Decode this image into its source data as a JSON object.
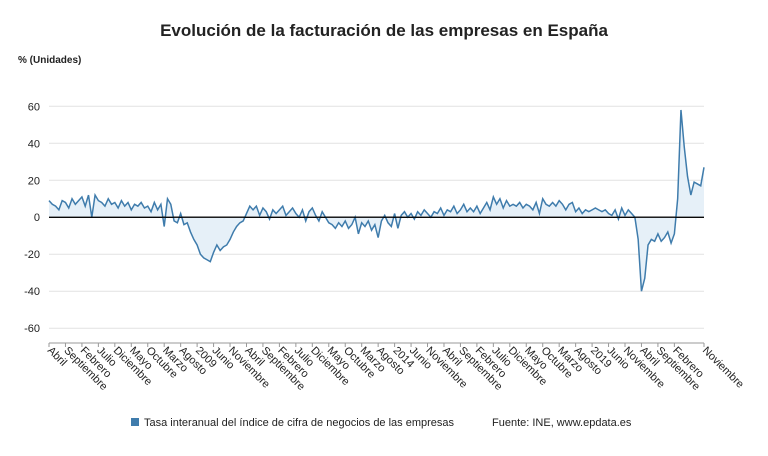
{
  "chart_data": {
    "type": "line",
    "title": "Evolución de la facturación de las empresas en España",
    "y_label": "% (Unidades)",
    "source": "Fuente: INE, www.epdata.es",
    "categories": [
      "Abril",
      null,
      null,
      null,
      null,
      "Septiembre",
      null,
      null,
      null,
      null,
      "Febrero",
      null,
      null,
      null,
      null,
      "Julio",
      null,
      null,
      null,
      null,
      "Diciembre",
      null,
      null,
      null,
      null,
      "Mayo",
      null,
      null,
      null,
      null,
      "Octubre",
      null,
      null,
      null,
      null,
      "Marzo",
      null,
      null,
      null,
      null,
      "Agosto",
      null,
      null,
      null,
      null,
      "2009",
      null,
      null,
      null,
      null,
      "Junio",
      null,
      null,
      null,
      null,
      "Noviembre",
      null,
      null,
      null,
      null,
      "Abril",
      null,
      null,
      null,
      null,
      "Septiembre",
      null,
      null,
      null,
      null,
      "Febrero",
      null,
      null,
      null,
      null,
      "Julio",
      null,
      null,
      null,
      null,
      "Diciembre",
      null,
      null,
      null,
      null,
      "Mayo",
      null,
      null,
      null,
      null,
      "Octubre",
      null,
      null,
      null,
      null,
      "Marzo",
      null,
      null,
      null,
      null,
      "Agosto",
      null,
      null,
      null,
      null,
      "2014",
      null,
      null,
      null,
      null,
      "Junio",
      null,
      null,
      null,
      null,
      "Noviembre",
      null,
      null,
      null,
      null,
      "Abril",
      null,
      null,
      null,
      null,
      "Septiembre",
      null,
      null,
      null,
      null,
      "Febrero",
      null,
      null,
      null,
      null,
      "Julio",
      null,
      null,
      null,
      null,
      "Diciembre",
      null,
      null,
      null,
      null,
      "Mayo",
      null,
      null,
      null,
      null,
      "Octubre",
      null,
      null,
      null,
      null,
      "Marzo",
      null,
      null,
      null,
      null,
      "Agosto",
      null,
      null,
      null,
      null,
      "2019",
      null,
      null,
      null,
      null,
      "Junio",
      null,
      null,
      null,
      null,
      "Noviembre",
      null,
      null,
      null,
      null,
      "Abril",
      null,
      null,
      null,
      null,
      "Septiembre",
      null,
      null,
      null,
      null,
      "Febrero",
      null,
      null,
      null,
      null,
      null,
      null,
      null,
      null,
      "Noviembre"
    ],
    "series": [
      {
        "name": "Tasa interanual del índice de cifra de negocios de las empresas",
        "color": "#3f7cac",
        "values": [
          9,
          7,
          6,
          4,
          9,
          8,
          5,
          10,
          7,
          9,
          11,
          6,
          12,
          0,
          12,
          9,
          8,
          6,
          10,
          7,
          8,
          5,
          9,
          6,
          8,
          4,
          7,
          6,
          8,
          5,
          6,
          3,
          8,
          4,
          7,
          -5,
          10,
          7,
          -2,
          -3,
          2,
          -4,
          -3,
          -8,
          -12,
          -15,
          -20,
          -22,
          -23,
          -24,
          -19,
          -15,
          -18,
          -16,
          -15,
          -12,
          -8,
          -5,
          -3,
          -2,
          2,
          6,
          4,
          6,
          1,
          5,
          3,
          -1,
          4,
          2,
          4,
          6,
          1,
          3,
          5,
          2,
          0,
          4,
          -2,
          3,
          5,
          1,
          -2,
          3,
          0,
          -3,
          -4,
          -6,
          -3,
          -5,
          -2,
          -6,
          -4,
          0,
          -9,
          -3,
          -5,
          -2,
          -7,
          -4,
          -11,
          -2,
          1,
          -3,
          -5,
          2,
          -6,
          1,
          3,
          0,
          2,
          -1,
          3,
          1,
          4,
          2,
          0,
          3,
          2,
          5,
          1,
          4,
          3,
          6,
          2,
          4,
          7,
          3,
          5,
          3,
          6,
          2,
          5,
          8,
          4,
          11,
          7,
          10,
          5,
          9,
          6,
          7,
          6,
          8,
          5,
          7,
          6,
          4,
          8,
          2,
          10,
          7,
          6,
          8,
          6,
          9,
          7,
          4,
          7,
          8,
          3,
          5,
          2,
          4,
          3,
          4,
          5,
          4,
          3,
          4,
          2,
          1,
          4,
          -1,
          5,
          1,
          4,
          2,
          0,
          -12,
          -40,
          -33,
          -15,
          -12,
          -13,
          -9,
          -13,
          -11,
          -8,
          -14,
          -9,
          10,
          58,
          38,
          22,
          12,
          19,
          18,
          17,
          27
        ]
      }
    ],
    "ylim": [
      -68,
      78
    ],
    "yticks": [
      -60,
      -40,
      -20,
      0,
      20,
      40,
      60
    ],
    "grid": true
  }
}
